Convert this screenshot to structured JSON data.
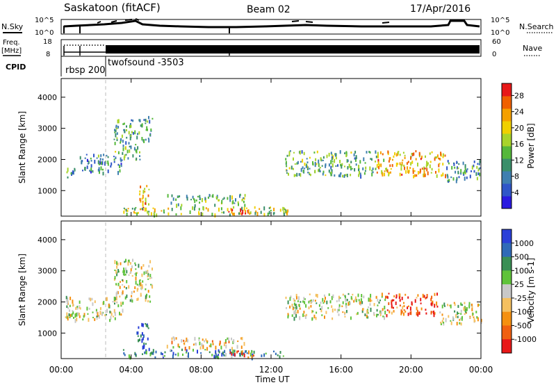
{
  "header": {
    "station": "Saskatoon (fitACF)",
    "beam": "Beam 02",
    "date": "17/Apr/2016"
  },
  "summary": {
    "nsky_label": "N.Sky",
    "nsearch_label": "N.Search",
    "nsky_ticks": [
      "10^5",
      "10^0"
    ],
    "nsearch_ticks": [
      "10^5",
      "10^0"
    ],
    "freq_label_1": "Freq.",
    "freq_label_2": "[MHz]",
    "freq_ticks": [
      "18",
      "8"
    ],
    "nave_label": "Nave",
    "nave_ticks": [
      "60",
      "0"
    ],
    "cpid_label": "CPID",
    "cpid_segments": [
      {
        "name": "rbsp 200",
        "start_hour": 0.0,
        "end_hour": 2.5
      },
      {
        "name": "twofsound -3503",
        "start_hour": 2.5,
        "end_hour": 24.0
      }
    ]
  },
  "chart_data": [
    {
      "type": "heatmap",
      "name": "power",
      "ylabel": "Slant Range [km]",
      "xlabel": "Time UT",
      "xlim": [
        0,
        24
      ],
      "ylim": [
        180,
        4600
      ],
      "yticks": [
        1000,
        2000,
        3000,
        4000
      ],
      "colorbar": {
        "label": "Power [dB]",
        "range": [
          0,
          31
        ],
        "ticks": [
          4,
          8,
          12,
          16,
          20,
          24,
          28
        ],
        "colors": [
          "#2a1ae0",
          "#2f56c8",
          "#3f7fb0",
          "#3a8f6a",
          "#55b83a",
          "#a8d42a",
          "#f0d000",
          "#f5a000",
          "#f06000",
          "#e81818"
        ]
      },
      "regions": [
        {
          "t": [
            0.2,
            1.0
          ],
          "r": [
            1450,
            1750
          ],
          "level": 0.35
        },
        {
          "t": [
            1.0,
            3.5
          ],
          "r": [
            1600,
            2200
          ],
          "level": 0.3
        },
        {
          "t": [
            3.0,
            4.5
          ],
          "r": [
            2000,
            3300
          ],
          "level": 0.4
        },
        {
          "t": [
            4.5,
            5.2
          ],
          "r": [
            2600,
            3400
          ],
          "level": 0.35
        },
        {
          "t": [
            4.3,
            5.0
          ],
          "r": [
            400,
            1200
          ],
          "level": 0.75
        },
        {
          "t": [
            3.5,
            13.0
          ],
          "r": [
            250,
            500
          ],
          "level": 0.55
        },
        {
          "t": [
            6.0,
            10.5
          ],
          "r": [
            550,
            900
          ],
          "level": 0.45
        },
        {
          "t": [
            9.5,
            11.0
          ],
          "r": [
            250,
            450
          ],
          "level": 0.95
        },
        {
          "t": [
            12.8,
            18.0
          ],
          "r": [
            1500,
            2300
          ],
          "level": 0.4
        },
        {
          "t": [
            18.0,
            22.0
          ],
          "r": [
            1500,
            2300
          ],
          "level": 0.7
        },
        {
          "t": [
            22.0,
            24.0
          ],
          "r": [
            1300,
            2000
          ],
          "level": 0.35
        }
      ]
    },
    {
      "type": "heatmap",
      "name": "velocity",
      "ylabel": "Slant Range [km]",
      "xlabel": "Time UT",
      "xlim": [
        0,
        24
      ],
      "ylim": [
        180,
        4600
      ],
      "yticks": [
        1000,
        2000,
        3000,
        4000
      ],
      "xticks": [
        "00:00",
        "04:00",
        "08:00",
        "12:00",
        "16:00",
        "20:00",
        "00:00"
      ],
      "colorbar": {
        "label": "Velocity [m s-1]",
        "ticks": [
          "1000",
          "500",
          "100",
          "25",
          "-25",
          "-100",
          "-500",
          "-1000"
        ],
        "colors": [
          "#2a3fd8",
          "#2f6ab8",
          "#3a8f55",
          "#5fc33a",
          "#c8c8c8",
          "#f5c060",
          "#f59010",
          "#f06010",
          "#e81818"
        ]
      },
      "regions": [
        {
          "t": [
            0.2,
            3.5
          ],
          "r": [
            1450,
            2200
          ],
          "level": 0.5
        },
        {
          "t": [
            3.0,
            5.2
          ],
          "r": [
            2000,
            3400
          ],
          "level": 0.5
        },
        {
          "t": [
            4.3,
            5.0
          ],
          "r": [
            400,
            1400
          ],
          "level": 0.1
        },
        {
          "t": [
            3.5,
            13.0
          ],
          "r": [
            250,
            500
          ],
          "level": 0.25
        },
        {
          "t": [
            6.0,
            10.5
          ],
          "r": [
            550,
            900
          ],
          "level": 0.6
        },
        {
          "t": [
            9.5,
            11.0
          ],
          "r": [
            250,
            450
          ],
          "level": 0.85
        },
        {
          "t": [
            12.8,
            18.5
          ],
          "r": [
            1500,
            2300
          ],
          "level": 0.5
        },
        {
          "t": [
            18.5,
            21.5
          ],
          "r": [
            1600,
            2300
          ],
          "level": 0.85
        },
        {
          "t": [
            21.5,
            24.0
          ],
          "r": [
            1300,
            2000
          ],
          "level": 0.5
        }
      ]
    }
  ]
}
